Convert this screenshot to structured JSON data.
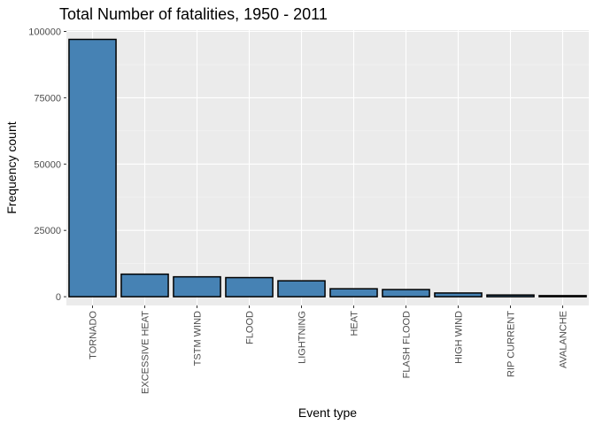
{
  "chart_data": {
    "type": "bar",
    "title": "Total Number of fatalities, 1950 - 2011",
    "xlabel": "Event type",
    "ylabel": "Frequency count",
    "categories": [
      "TORNADO",
      "EXCESSIVE HEAT",
      "TSTM WIND",
      "FLOOD",
      "LIGHTNING",
      "HEAT",
      "FLASH FLOOD",
      "HIGH WIND",
      "RIP CURRENT",
      "AVALANCHE"
    ],
    "values": [
      97000,
      8500,
      7500,
      7200,
      6000,
      3000,
      2700,
      1400,
      650,
      400
    ],
    "ylim": [
      -3300,
      100500
    ],
    "yticks": [
      0,
      25000,
      50000,
      75000,
      100000
    ],
    "ytick_labels": [
      "0",
      "25000",
      "50000",
      "75000",
      "100000"
    ],
    "grid": true,
    "bar_fill": "#4682b4",
    "bar_outline": "#000000",
    "panel_background": "#ebebeb"
  }
}
